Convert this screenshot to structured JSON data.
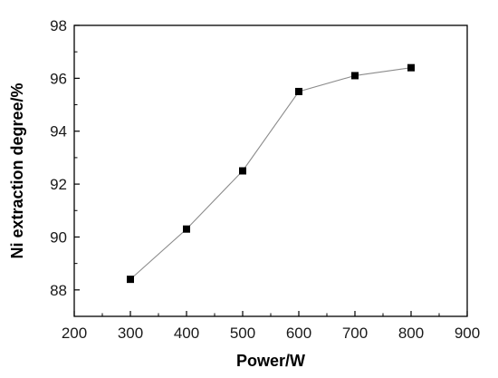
{
  "chart_data": {
    "type": "line",
    "title": "",
    "xlabel": "Power/W",
    "ylabel": "Ni extraction degree/%",
    "xlim": [
      200,
      900
    ],
    "ylim": [
      87,
      98
    ],
    "xticks": [
      200,
      300,
      400,
      500,
      600,
      700,
      800,
      900
    ],
    "yticks": [
      88,
      90,
      92,
      94,
      96,
      98
    ],
    "x_tick_labels": [
      "200",
      "300",
      "400",
      "500",
      "600",
      "700",
      "800",
      "900"
    ],
    "y_tick_labels": [
      "88",
      "90",
      "92",
      "94",
      "96",
      "98"
    ],
    "grid": false,
    "legend": "none",
    "series": [
      {
        "marker": "square",
        "color": "#000000",
        "line_color": "#8c8c8c",
        "x": [
          300,
          400,
          500,
          600,
          700,
          800
        ],
        "y": [
          88.4,
          90.3,
          92.5,
          95.5,
          96.1,
          96.4
        ]
      }
    ]
  }
}
